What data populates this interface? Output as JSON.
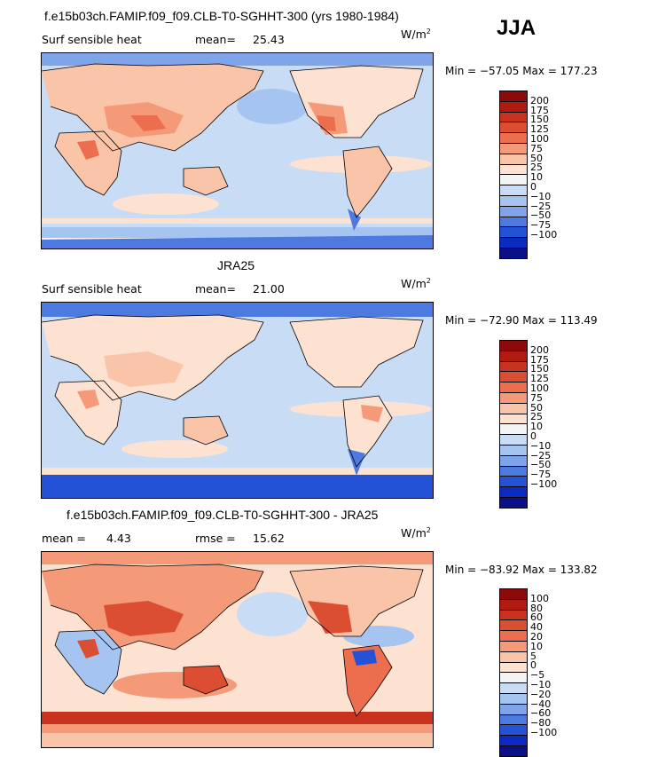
{
  "season": "JJA",
  "units_base": "W/m",
  "units_exp": "2",
  "panels": [
    {
      "title": "f.e15b03ch.FAMIP.f09_f09.CLB-T0-SGHHT-300 (yrs 1980-1984)",
      "left_label": "Surf sensible heat",
      "stat_label": "mean=",
      "stat_value": "25.43",
      "minmax": "Min = −57.05 Max = 177.23",
      "colorbar": {
        "levels": [
          "200",
          "175",
          "150",
          "125",
          "100",
          "75",
          "50",
          "25",
          "10",
          "0",
          "−10",
          "−25",
          "−50",
          "−75",
          "−100"
        ],
        "colors": [
          "#8c0a0a",
          "#b01a10",
          "#c8321e",
          "#dc4e32",
          "#ec6e4e",
          "#f59a78",
          "#fac4a8",
          "#fde2d2",
          "#f4f4f4",
          "#c8dcf5",
          "#a6c4f0",
          "#80a4ea",
          "#4d7ae0",
          "#2352d6",
          "#0a2ac0",
          "#0a1088"
        ]
      }
    },
    {
      "title": "JRA25",
      "left_label": "Surf sensible heat",
      "stat_label": "mean=",
      "stat_value": "21.00",
      "minmax": "Min = −72.90 Max = 113.49",
      "colorbar": {
        "levels": [
          "200",
          "175",
          "150",
          "125",
          "100",
          "75",
          "50",
          "25",
          "10",
          "0",
          "−10",
          "−25",
          "−50",
          "−75",
          "−100"
        ],
        "colors": [
          "#8c0a0a",
          "#b01a10",
          "#c8321e",
          "#dc4e32",
          "#ec6e4e",
          "#f59a78",
          "#fac4a8",
          "#fde2d2",
          "#f4f4f4",
          "#c8dcf5",
          "#a6c4f0",
          "#80a4ea",
          "#4d7ae0",
          "#2352d6",
          "#0a2ac0",
          "#0a1088"
        ]
      }
    },
    {
      "title": "f.e15b03ch.FAMIP.f09_f09.CLB-T0-SGHHT-300 - JRA25",
      "left_label": "mean =",
      "left_value": "4.43",
      "stat_label": "rmse =",
      "stat_value": "15.62",
      "minmax": "Min = −83.92 Max = 133.82",
      "colorbar": {
        "levels": [
          "100",
          "80",
          "60",
          "40",
          "20",
          "10",
          "5",
          "0",
          "−5",
          "−10",
          "−20",
          "−40",
          "−60",
          "−80",
          "−100"
        ],
        "colors": [
          "#8c0a0a",
          "#b01a10",
          "#c8321e",
          "#dc4e32",
          "#ec6e4e",
          "#f59a78",
          "#fac4a8",
          "#fde2d2",
          "#f4f4f4",
          "#c8dcf5",
          "#a6c4f0",
          "#80a4ea",
          "#4d7ae0",
          "#2352d6",
          "#0a2ac0",
          "#0a1088"
        ]
      }
    }
  ]
}
